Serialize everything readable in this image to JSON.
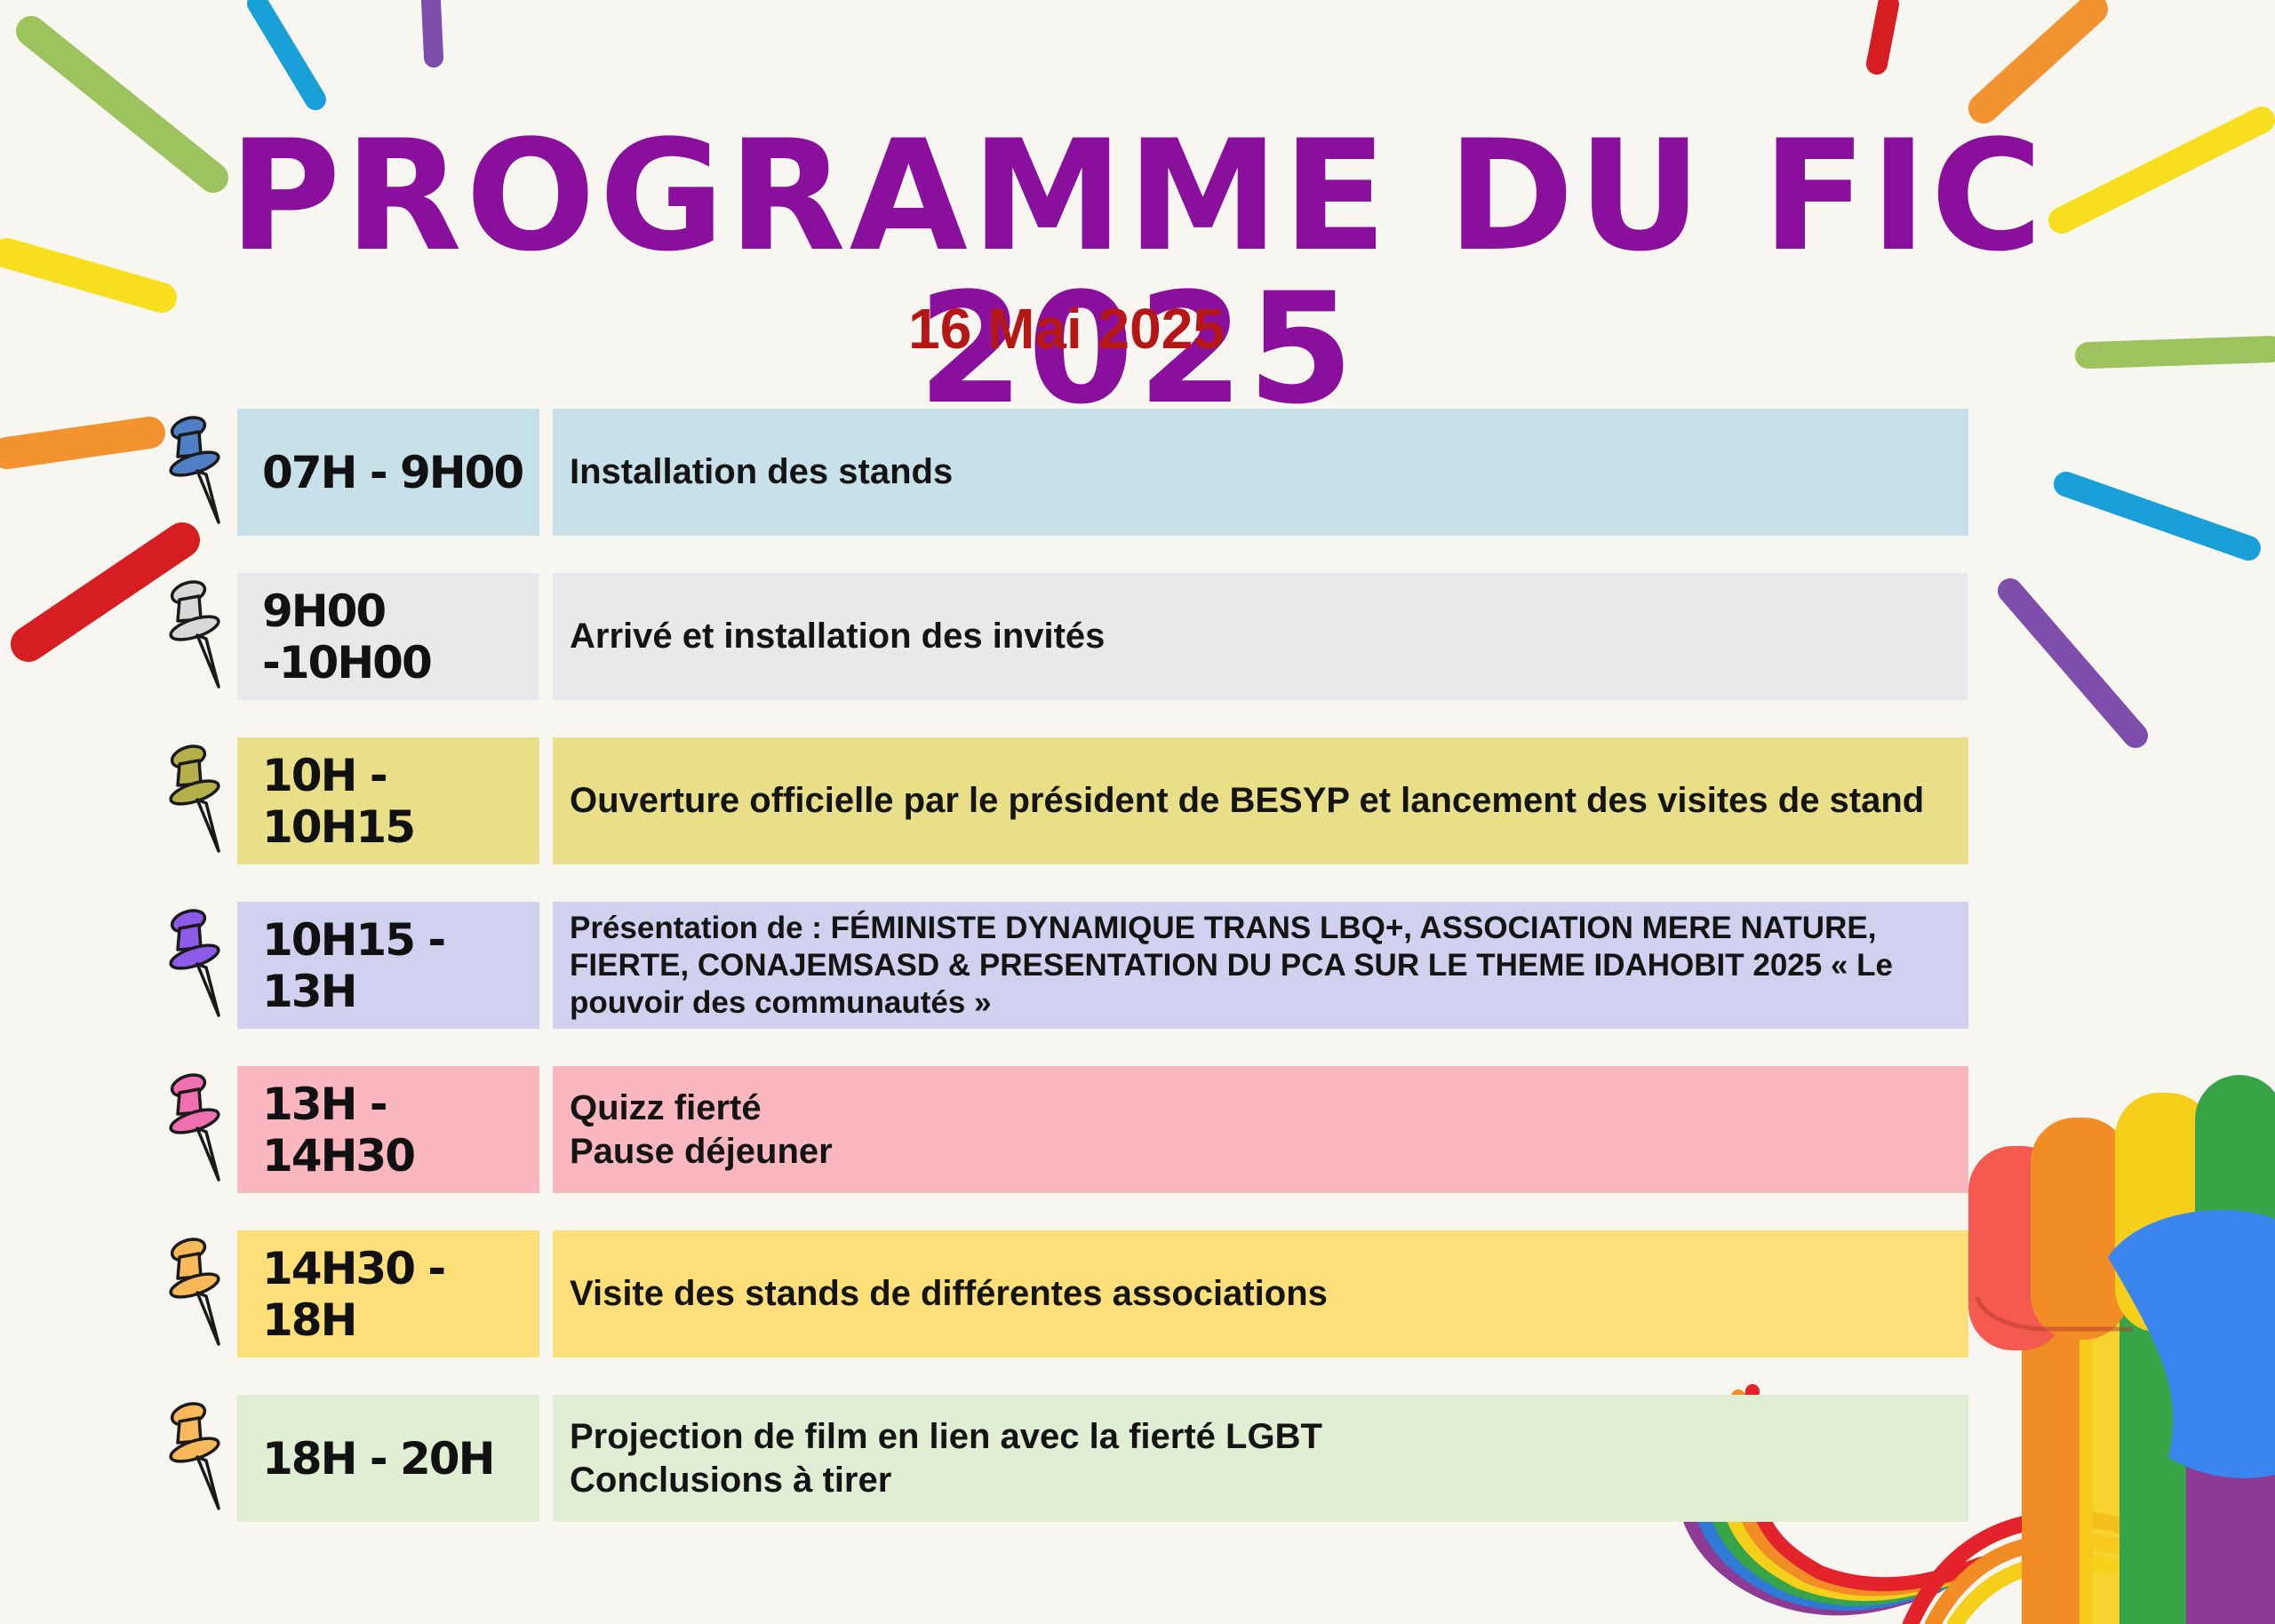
{
  "header": {
    "title": "PROGRAMME DU FIC 2025",
    "date": "16 Mai 2025"
  },
  "colors": {
    "background": "#f8f6f1",
    "title": "#8a0f9c",
    "date": "#b51616"
  },
  "schedule": [
    {
      "time": "07H - 9H00",
      "lines": [
        "Installation des stands"
      ],
      "bg": "#c8e0ea",
      "pin_color": "#4f7fc6"
    },
    {
      "time": "9H00 -10H00",
      "lines": [
        "Arrivé et installation des invités"
      ],
      "bg": "#e7e9eb",
      "pin_color": "#d8d8d8"
    },
    {
      "time": "10H - 10H15",
      "lines": [
        "Ouverture officielle par le président de BESYP et lancement des visites de stand"
      ],
      "bg": "#e8df88",
      "pin_color": "#b5b04a"
    },
    {
      "time": "10H15 - 13H",
      "lines": [
        "Présentation de : FÉMINISTE DYNAMIQUE TRANS LBQ+, ASSOCIATION MERE NATURE, FIERTE, CONAJEMSASD & PRESENTATION DU PCA SUR LE THEME IDAHOBIT 2025 « Le pouvoir des communautés »"
      ],
      "bg": "#d1d0ef",
      "pin_color": "#8c5ce8"
    },
    {
      "time": "13H - 14H30",
      "lines": [
        "Quizz fierté",
        "Pause déjeuner"
      ],
      "bg": "#fbb7bf",
      "pin_color": "#f06fb0"
    },
    {
      "time": "14H30 - 18H",
      "lines": [
        "Visite des stands de différentes associations"
      ],
      "bg": "#fedf79",
      "pin_color": "#f9b95a"
    },
    {
      "time": "18H - 20H",
      "lines": [
        "Projection de film en lien avec la fierté LGBT",
        "Conclusions à tirer"
      ],
      "bg": "#e0eed3",
      "pin_color": "#f9b95a"
    }
  ]
}
